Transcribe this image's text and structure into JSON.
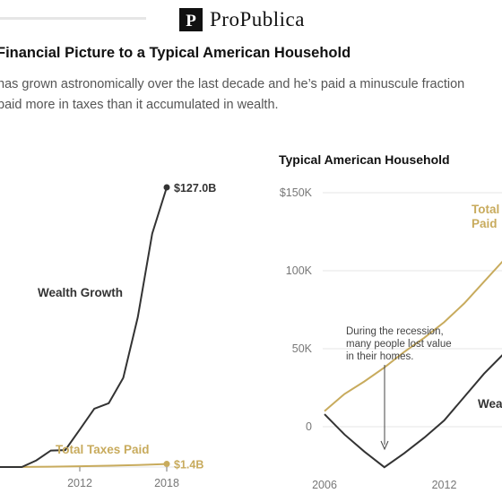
{
  "brand": {
    "name": "ProPublica",
    "logo_mark": "P"
  },
  "headline": "Financial Picture to a Typical American Household",
  "dek": {
    "line1": "has grown astronomically over the last decade and he’s paid a minuscule fraction",
    "line2": "paid more in taxes than it accumulated in wealth."
  },
  "colors": {
    "wealth": "#333333",
    "taxes": "#c8ab5d",
    "grid": "#e5e5e5",
    "axis": "#777777"
  },
  "chart_data": [
    {
      "type": "line",
      "title": "",
      "x_ticks": [
        "2012",
        "2018"
      ],
      "xlim": [
        2006,
        2018
      ],
      "ylim": [
        0,
        127.0
      ],
      "series": [
        {
          "name": "Wealth Growth",
          "color": "#333333",
          "x": [
            2006,
            2007,
            2008,
            2009,
            2010,
            2011,
            2012,
            2013,
            2014,
            2015,
            2016,
            2017,
            2018
          ],
          "values": [
            0,
            0,
            0,
            3.0,
            7.5,
            7.7,
            17.0,
            26.5,
            29.0,
            40.5,
            68.0,
            106.0,
            127.0
          ],
          "end_label": "$127.0B"
        },
        {
          "name": "Total Taxes Paid",
          "color": "#c8ab5d",
          "x": [
            2006,
            2008,
            2010,
            2012,
            2014,
            2016,
            2018
          ],
          "values": [
            0,
            0.05,
            0.15,
            0.35,
            0.6,
            0.95,
            1.4
          ],
          "end_label": "$1.4B"
        }
      ]
    },
    {
      "type": "line",
      "title": "Typical American Household",
      "x_ticks": [
        "2006",
        "2012"
      ],
      "y_ticks": [
        "$150K",
        "100K",
        "50K",
        "0"
      ],
      "xlim": [
        2006,
        2018
      ],
      "ylim": [
        -27000,
        150000
      ],
      "series": [
        {
          "name": "Total Taxes Paid",
          "label_lines": [
            "Total",
            "Paid"
          ],
          "color": "#c8ab5d",
          "x": [
            2006,
            2007,
            2008,
            2009,
            2010,
            2011,
            2012,
            2013,
            2014,
            2015
          ],
          "values": [
            10000,
            21000,
            29000,
            38000,
            48000,
            57000,
            67000,
            79000,
            93000,
            107000
          ]
        },
        {
          "name": "Wealth Growth",
          "label_lines": [
            "Wea"
          ],
          "color": "#333333",
          "x": [
            2006,
            2007,
            2008,
            2009,
            2010,
            2011,
            2012,
            2013,
            2014,
            2015
          ],
          "values": [
            8000,
            -5000,
            -16000,
            -26000,
            -17000,
            -7000,
            4000,
            19000,
            34000,
            47000
          ]
        }
      ],
      "annotation": {
        "lines": [
          "During the recession,",
          "many people lost value",
          "in their homes."
        ]
      }
    }
  ]
}
